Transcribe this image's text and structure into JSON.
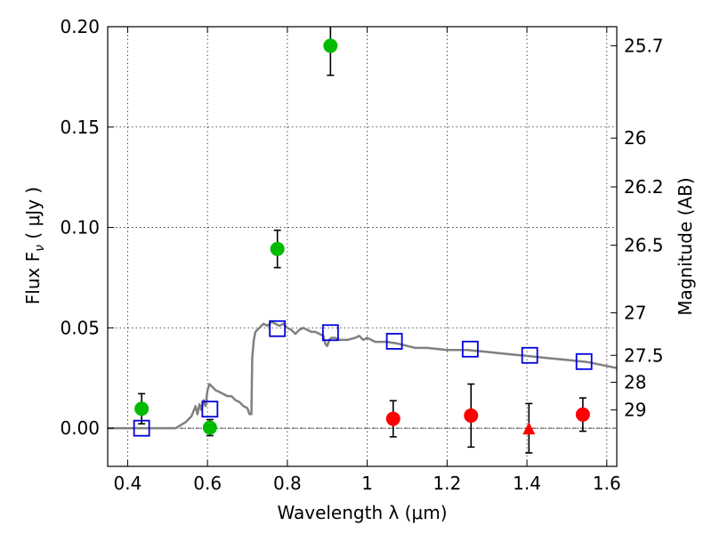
{
  "chart_data": {
    "type": "scatter",
    "xlabel": "Wavelength  λ (μm)",
    "ylabel": "Flux  F",
    "ylabel_sub": "ν",
    "ylabel_unit": "  ( μJy )",
    "ylabel_right": "Magnitude (AB)",
    "xlim": [
      0.35,
      1.625
    ],
    "ylim": [
      -0.019,
      0.2
    ],
    "grid": true,
    "x_ticks": [
      {
        "value": 0.4,
        "label": "0.4"
      },
      {
        "value": 0.6,
        "label": "0.6"
      },
      {
        "value": 0.8,
        "label": "0.8"
      },
      {
        "value": 1.0,
        "label": "1"
      },
      {
        "value": 1.2,
        "label": "1.2"
      },
      {
        "value": 1.4,
        "label": "1.4"
      },
      {
        "value": 1.6,
        "label": "1.6"
      }
    ],
    "y_ticks": [
      {
        "value": 0.0,
        "label": "0.00"
      },
      {
        "value": 0.05,
        "label": "0.05"
      },
      {
        "value": 0.1,
        "label": "0.10"
      },
      {
        "value": 0.15,
        "label": "0.15"
      },
      {
        "value": 0.2,
        "label": "0.20"
      }
    ],
    "right_ticks": [
      {
        "label": "25.7",
        "flux": 0.1905
      },
      {
        "label": "26",
        "flux": 0.1445
      },
      {
        "label": "26.2",
        "flux": 0.1202
      },
      {
        "label": "26.5",
        "flux": 0.0912
      },
      {
        "label": "27",
        "flux": 0.0575
      },
      {
        "label": "27.5",
        "flux": 0.0363
      },
      {
        "label": "28",
        "flux": 0.0229
      },
      {
        "label": "29",
        "flux": 0.0091
      }
    ],
    "zero_line": 0.0,
    "series": [
      {
        "marker": "line",
        "color": "#808080",
        "points": [
          [
            0.35,
            0.0
          ],
          [
            0.5,
            0.0
          ],
          [
            0.52,
            0.0
          ],
          [
            0.545,
            0.003
          ],
          [
            0.56,
            0.006
          ],
          [
            0.57,
            0.011
          ],
          [
            0.575,
            0.007
          ],
          [
            0.58,
            0.012
          ],
          [
            0.585,
            0.009
          ],
          [
            0.59,
            0.014
          ],
          [
            0.595,
            0.011
          ],
          [
            0.6,
            0.019
          ],
          [
            0.605,
            0.022
          ],
          [
            0.61,
            0.021
          ],
          [
            0.62,
            0.019
          ],
          [
            0.63,
            0.018
          ],
          [
            0.64,
            0.017
          ],
          [
            0.65,
            0.016
          ],
          [
            0.66,
            0.016
          ],
          [
            0.67,
            0.014
          ],
          [
            0.68,
            0.013
          ],
          [
            0.69,
            0.011
          ],
          [
            0.7,
            0.01
          ],
          [
            0.705,
            0.007
          ],
          [
            0.71,
            0.007
          ],
          [
            0.712,
            0.035
          ],
          [
            0.716,
            0.044
          ],
          [
            0.72,
            0.048
          ],
          [
            0.73,
            0.05
          ],
          [
            0.74,
            0.052
          ],
          [
            0.75,
            0.051
          ],
          [
            0.76,
            0.053
          ],
          [
            0.77,
            0.052
          ],
          [
            0.78,
            0.051
          ],
          [
            0.79,
            0.052
          ],
          [
            0.8,
            0.05
          ],
          [
            0.81,
            0.049
          ],
          [
            0.82,
            0.047
          ],
          [
            0.83,
            0.049
          ],
          [
            0.84,
            0.05
          ],
          [
            0.85,
            0.049
          ],
          [
            0.86,
            0.048
          ],
          [
            0.87,
            0.048
          ],
          [
            0.88,
            0.047
          ],
          [
            0.89,
            0.046
          ],
          [
            0.895,
            0.042
          ],
          [
            0.9,
            0.041
          ],
          [
            0.905,
            0.044
          ],
          [
            0.91,
            0.045
          ],
          [
            0.92,
            0.045
          ],
          [
            0.93,
            0.044
          ],
          [
            0.95,
            0.044
          ],
          [
            0.97,
            0.045
          ],
          [
            0.98,
            0.046
          ],
          [
            0.99,
            0.044
          ],
          [
            1.0,
            0.045
          ],
          [
            1.02,
            0.043
          ],
          [
            1.05,
            0.043
          ],
          [
            1.08,
            0.042
          ],
          [
            1.1,
            0.041
          ],
          [
            1.12,
            0.04
          ],
          [
            1.15,
            0.04
          ],
          [
            1.2,
            0.039
          ],
          [
            1.25,
            0.039
          ],
          [
            1.3,
            0.038
          ],
          [
            1.35,
            0.037
          ],
          [
            1.4,
            0.036
          ],
          [
            1.45,
            0.035
          ],
          [
            1.5,
            0.034
          ],
          [
            1.55,
            0.033
          ],
          [
            1.6,
            0.031
          ],
          [
            1.625,
            0.03
          ]
        ]
      },
      {
        "marker": "circle",
        "color": "#00bb00",
        "points": [
          {
            "x": 0.435,
            "y": 0.0097,
            "err": 0.0075
          },
          {
            "x": 0.606,
            "y": 0.0003,
            "err": 0.004
          },
          {
            "x": 0.775,
            "y": 0.0893,
            "err": 0.0093
          },
          {
            "x": 0.908,
            "y": 0.1905,
            "err": 0.0147
          }
        ]
      },
      {
        "marker": "circle",
        "color": "#ff0000",
        "points": [
          {
            "x": 1.065,
            "y": 0.0047,
            "err": 0.009
          },
          {
            "x": 1.26,
            "y": 0.0063,
            "err": 0.0157
          },
          {
            "x": 1.54,
            "y": 0.0068,
            "err": 0.0083
          }
        ]
      },
      {
        "marker": "triangle",
        "color": "#ff0000",
        "points": [
          {
            "x": 1.405,
            "y": 0.0,
            "err": 0.0123
          }
        ]
      },
      {
        "marker": "square",
        "color": "#0000dd",
        "points": [
          {
            "x": 0.435,
            "y": 0.0
          },
          {
            "x": 0.606,
            "y": 0.0095
          },
          {
            "x": 0.775,
            "y": 0.0496
          },
          {
            "x": 0.908,
            "y": 0.0476
          },
          {
            "x": 1.068,
            "y": 0.0433
          },
          {
            "x": 1.258,
            "y": 0.0394
          },
          {
            "x": 1.407,
            "y": 0.0363
          },
          {
            "x": 1.543,
            "y": 0.0332
          }
        ]
      }
    ]
  }
}
